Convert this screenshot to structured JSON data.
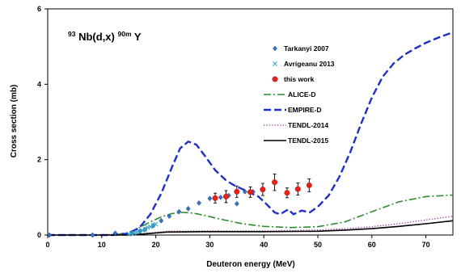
{
  "chart_data": {
    "type": "line",
    "title": {
      "pre_sup": "93",
      "part1": "Nb(d,x)",
      "post_sup": "90m",
      "part2": "Y"
    },
    "xlabel": "Deuteron energy (MeV)",
    "ylabel": "Cross section (mb)",
    "xlim": [
      0,
      75
    ],
    "ylim": [
      0,
      6
    ],
    "xticks": [
      0,
      10,
      20,
      30,
      40,
      50,
      60,
      70
    ],
    "yticks": [
      0,
      2,
      4,
      6
    ],
    "legend_position": "top-center",
    "series": [
      {
        "name": "Tarkanyi 2007",
        "kind": "scatter",
        "marker": "diamond",
        "color": "#3a74c4",
        "points": [
          [
            0.3,
            0.0
          ],
          [
            8.3,
            0.0
          ],
          [
            12.5,
            0.05
          ],
          [
            15.6,
            0.06
          ],
          [
            17.1,
            0.1
          ],
          [
            18.0,
            0.15
          ],
          [
            19.5,
            0.25
          ],
          [
            21.0,
            0.38
          ],
          [
            22.5,
            0.5
          ],
          [
            24.3,
            0.62
          ],
          [
            26.0,
            0.7
          ],
          [
            28.0,
            0.85
          ],
          [
            30.0,
            0.97
          ],
          [
            32.0,
            1.0
          ],
          [
            33.5,
            1.05
          ],
          [
            35.0,
            0.83
          ],
          [
            36.5,
            1.15
          ],
          [
            38.0,
            1.15
          ]
        ]
      },
      {
        "name": "Avrigeanu 2013",
        "kind": "scatter",
        "marker": "x",
        "color": "#30a8c8",
        "points": [
          [
            15.0,
            0.02
          ],
          [
            15.5,
            0.04
          ],
          [
            16.0,
            0.05
          ],
          [
            16.5,
            0.08
          ],
          [
            17.0,
            0.1
          ],
          [
            17.5,
            0.12
          ],
          [
            18.0,
            0.15
          ],
          [
            18.5,
            0.2
          ],
          [
            19.0,
            0.22
          ],
          [
            19.5,
            0.26
          ],
          [
            20.0,
            0.29
          ]
        ]
      },
      {
        "name": "this work",
        "kind": "scatter",
        "marker": "circle",
        "color": "#e8201a",
        "points": [
          [
            31.0,
            0.98
          ],
          [
            33.0,
            1.02
          ],
          [
            35.0,
            1.15
          ],
          [
            37.5,
            1.14
          ],
          [
            39.8,
            1.21
          ],
          [
            42.0,
            1.4
          ],
          [
            44.3,
            1.12
          ],
          [
            46.3,
            1.22
          ],
          [
            48.4,
            1.32
          ]
        ],
        "errors": [
          0.13,
          0.16,
          0.15,
          0.14,
          0.16,
          0.22,
          0.13,
          0.16,
          0.17
        ]
      },
      {
        "name": "ALICE-D",
        "kind": "line",
        "style": "dashdot",
        "color": "#2e8b2e",
        "points": [
          [
            0,
            0
          ],
          [
            10,
            0
          ],
          [
            13,
            0.02
          ],
          [
            15,
            0.07
          ],
          [
            17,
            0.2
          ],
          [
            19,
            0.35
          ],
          [
            21,
            0.48
          ],
          [
            23,
            0.57
          ],
          [
            25,
            0.6
          ],
          [
            27,
            0.58
          ],
          [
            29,
            0.52
          ],
          [
            32,
            0.42
          ],
          [
            36,
            0.3
          ],
          [
            40,
            0.23
          ],
          [
            45,
            0.2
          ],
          [
            50,
            0.22
          ],
          [
            55,
            0.35
          ],
          [
            60,
            0.62
          ],
          [
            65,
            0.88
          ],
          [
            70,
            1.02
          ],
          [
            75,
            1.06
          ]
        ]
      },
      {
        "name": "EMPIRE-D",
        "kind": "line",
        "style": "dashed",
        "color": "#1f2fc8",
        "points": [
          [
            0,
            0
          ],
          [
            12,
            0
          ],
          [
            15,
            0.04
          ],
          [
            17,
            0.2
          ],
          [
            19,
            0.55
          ],
          [
            21,
            1.1
          ],
          [
            23,
            1.8
          ],
          [
            24.5,
            2.3
          ],
          [
            26,
            2.48
          ],
          [
            27.5,
            2.4
          ],
          [
            29,
            2.12
          ],
          [
            31,
            1.72
          ],
          [
            33,
            1.45
          ],
          [
            34.5,
            1.32
          ],
          [
            36,
            1.22
          ],
          [
            37.5,
            1.12
          ],
          [
            39,
            1.02
          ],
          [
            40.5,
            0.82
          ],
          [
            42,
            0.6
          ],
          [
            43,
            0.55
          ],
          [
            44.5,
            0.68
          ],
          [
            45.5,
            0.55
          ],
          [
            47,
            0.65
          ],
          [
            48.5,
            0.6
          ],
          [
            50,
            0.75
          ],
          [
            52,
            1.05
          ],
          [
            54,
            1.55
          ],
          [
            56,
            2.2
          ],
          [
            58,
            2.95
          ],
          [
            60,
            3.65
          ],
          [
            62,
            4.2
          ],
          [
            64,
            4.55
          ],
          [
            66,
            4.78
          ],
          [
            68,
            4.95
          ],
          [
            70,
            5.1
          ],
          [
            72,
            5.22
          ],
          [
            75,
            5.38
          ]
        ]
      },
      {
        "name": "TENDL-2014",
        "kind": "line",
        "style": "dotted",
        "color": "#8a2b8a",
        "points": [
          [
            0,
            0
          ],
          [
            15,
            0
          ],
          [
            18,
            0.04
          ],
          [
            22,
            0.1
          ],
          [
            30,
            0.11
          ],
          [
            40,
            0.11
          ],
          [
            50,
            0.13
          ],
          [
            55,
            0.17
          ],
          [
            60,
            0.22
          ],
          [
            65,
            0.3
          ],
          [
            70,
            0.4
          ],
          [
            75,
            0.5
          ]
        ]
      },
      {
        "name": "TENDL-2015",
        "kind": "line",
        "style": "solid",
        "color": "#000000",
        "points": [
          [
            0,
            0
          ],
          [
            15,
            0
          ],
          [
            18,
            0.03
          ],
          [
            22,
            0.08
          ],
          [
            30,
            0.09
          ],
          [
            40,
            0.09
          ],
          [
            50,
            0.1
          ],
          [
            55,
            0.13
          ],
          [
            60,
            0.17
          ],
          [
            65,
            0.23
          ],
          [
            70,
            0.3
          ],
          [
            75,
            0.38
          ]
        ]
      }
    ]
  }
}
